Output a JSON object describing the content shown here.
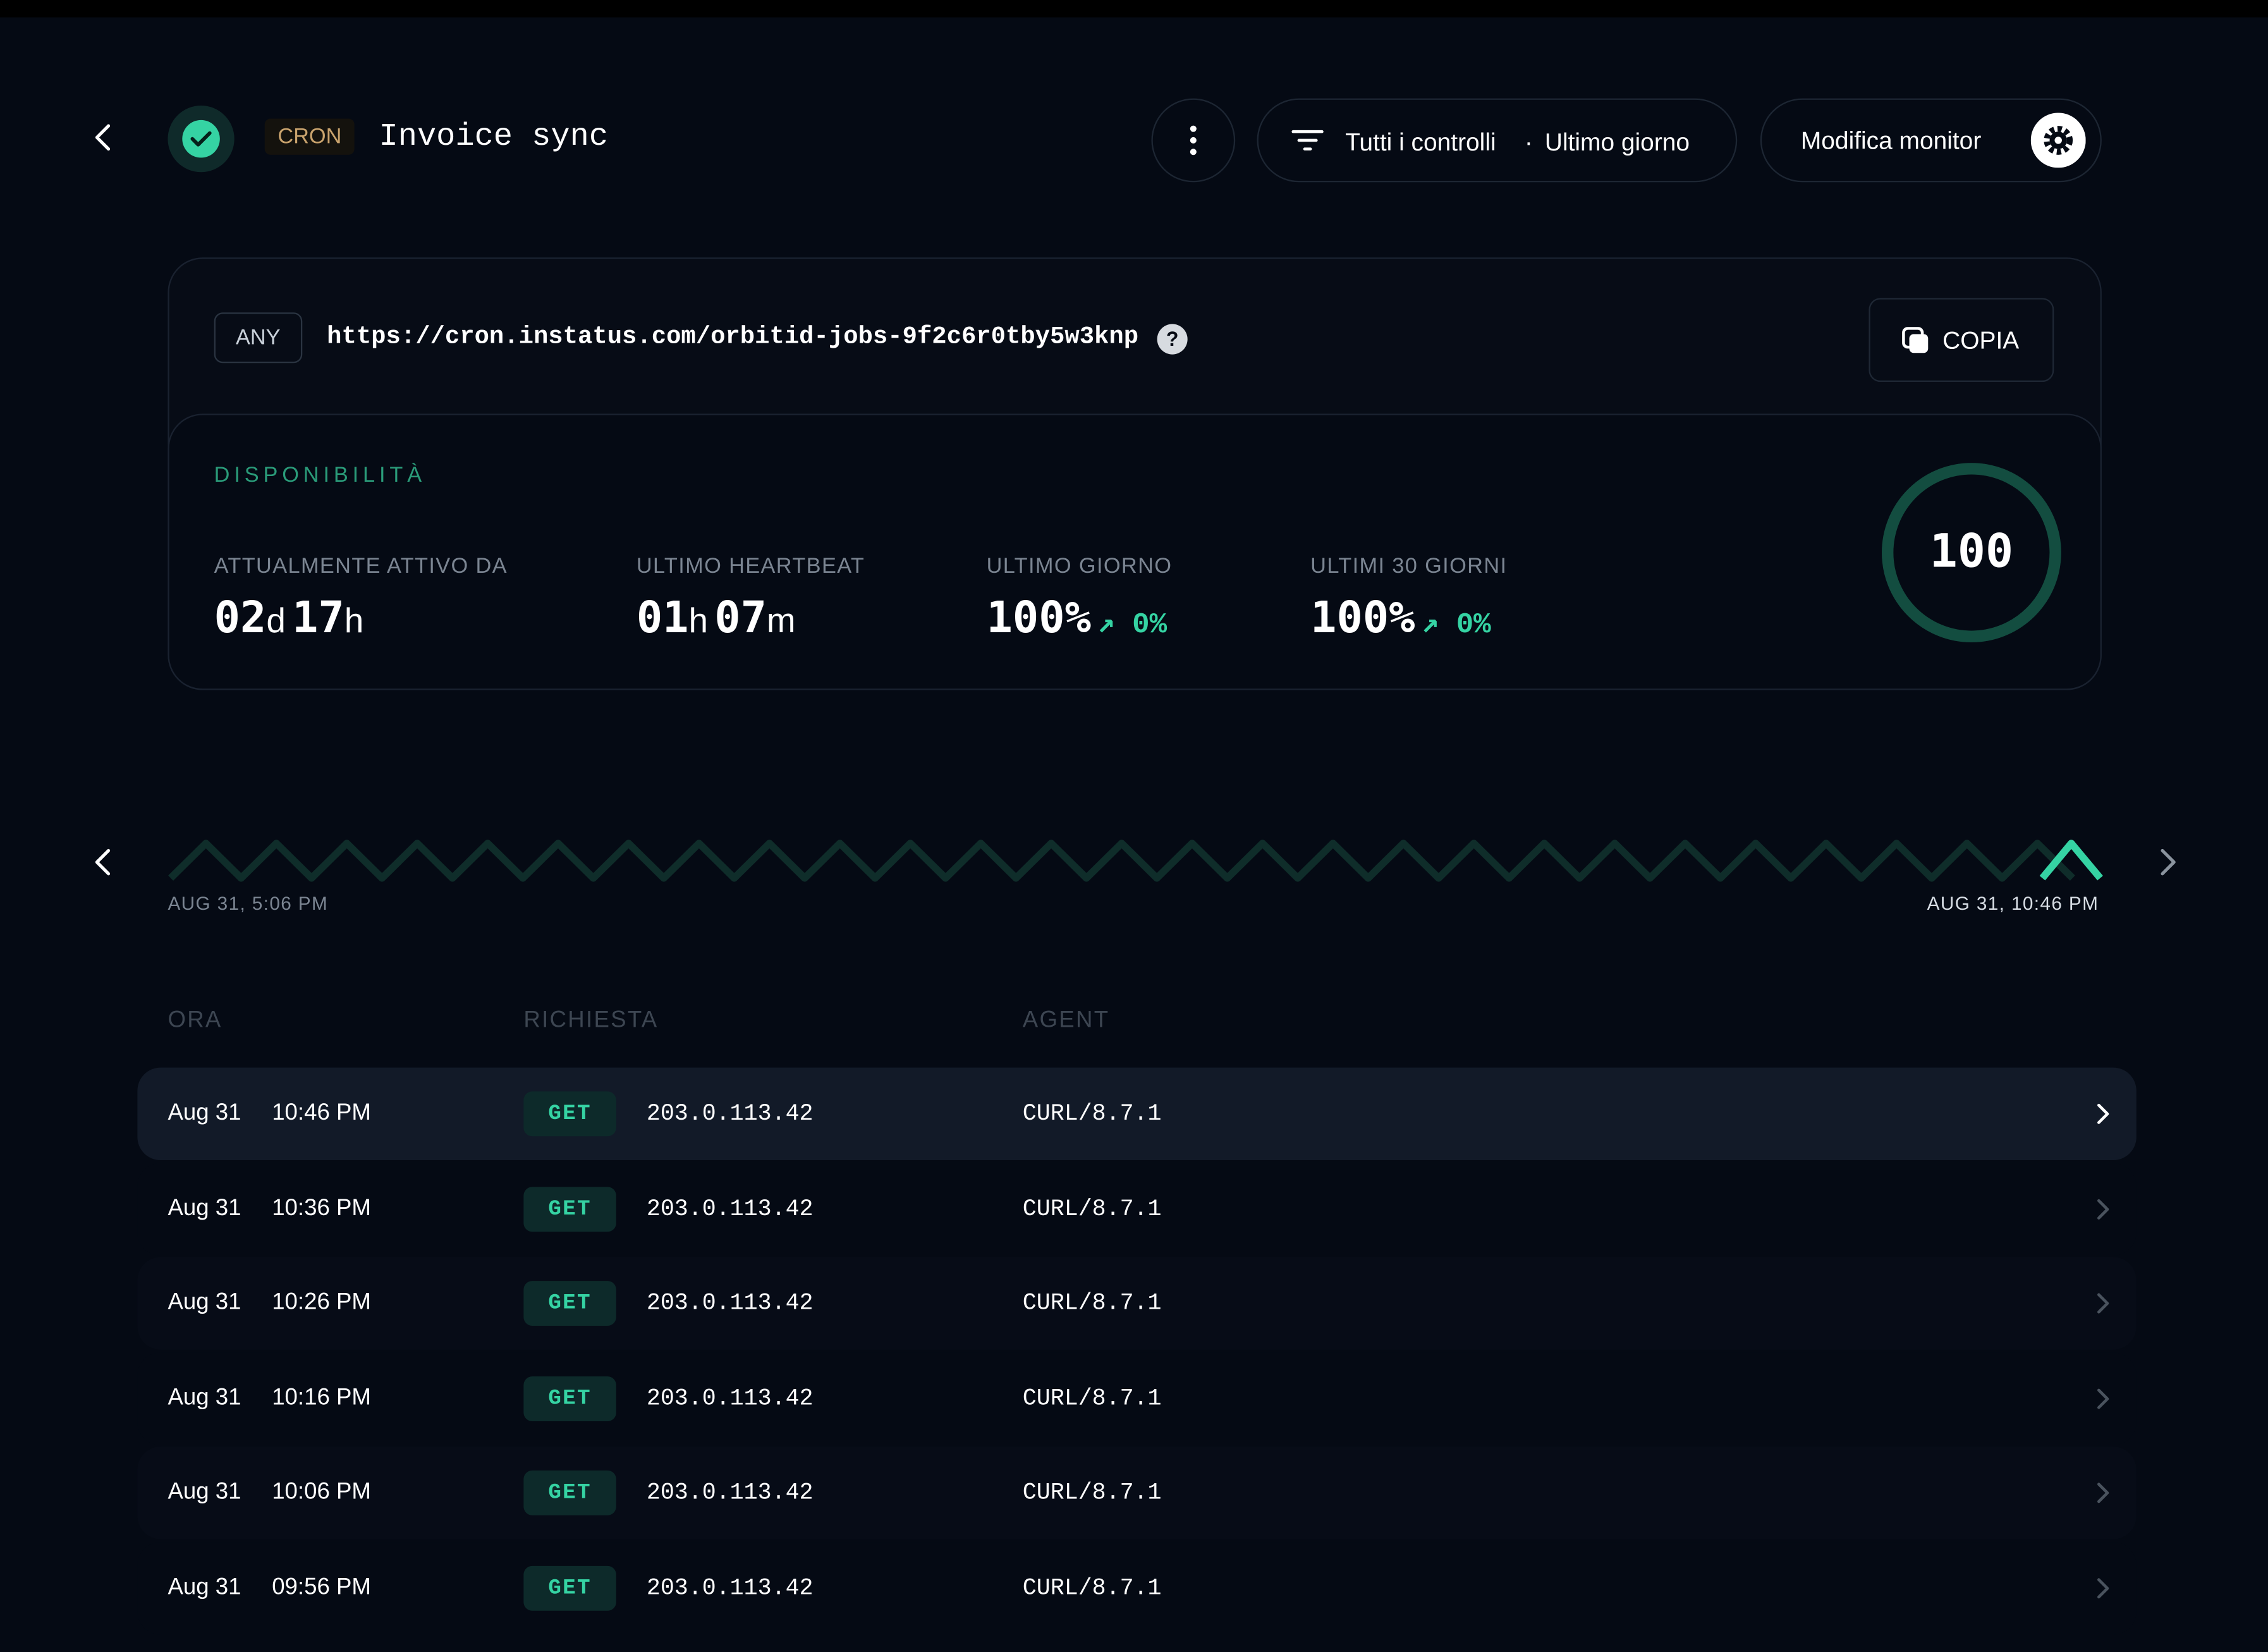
{
  "header": {
    "type_badge": "CRON",
    "title": "Invoice sync",
    "filter": "Tutti i controlli",
    "separator": "·",
    "period": "Ultimo giorno",
    "edit_button": "Modifica monitor"
  },
  "endpoint": {
    "method": "ANY",
    "url": "https://cron.instatus.com/orbitid-jobs-9f2c6r0tby5w3knp",
    "help": "?",
    "copy_button": "COPIA"
  },
  "availability": {
    "title": "DISPONIBILITÀ",
    "score": 100,
    "uptime": {
      "label": "ATTUALMENTE ATTIVO DA",
      "value1": "02",
      "unit1": "d",
      "value2": "17",
      "unit2": "h"
    },
    "heartbeat": {
      "label": "ULTIMO HEARTBEAT",
      "value1": "01",
      "unit1": "h",
      "value2": "07",
      "unit2": "m"
    },
    "day": {
      "label": "ULTIMO GIORNO",
      "value": "100%",
      "change": "0%"
    },
    "month": {
      "label": "ULTIMI 30 GIORNI",
      "value": "100%",
      "change": "0%"
    }
  },
  "timeline": {
    "start": "AUG 31, 5:06 PM",
    "end": "AUG 31, 10:46 PM"
  },
  "table": {
    "columns": [
      "ORA",
      "RICHIESTA",
      "AGENT"
    ],
    "rows": [
      {
        "date": "Aug 31",
        "time": "10:46 PM",
        "method": "GET",
        "ip": "203.0.113.42",
        "agent": "CURL/8.7.1"
      },
      {
        "date": "Aug 31",
        "time": "10:36 PM",
        "method": "GET",
        "ip": "203.0.113.42",
        "agent": "CURL/8.7.1"
      },
      {
        "date": "Aug 31",
        "time": "10:26 PM",
        "method": "GET",
        "ip": "203.0.113.42",
        "agent": "CURL/8.7.1"
      },
      {
        "date": "Aug 31",
        "time": "10:16 PM",
        "method": "GET",
        "ip": "203.0.113.42",
        "agent": "CURL/8.7.1"
      },
      {
        "date": "Aug 31",
        "time": "10:06 PM",
        "method": "GET",
        "ip": "203.0.113.42",
        "agent": "CURL/8.7.1"
      },
      {
        "date": "Aug 31",
        "time": "09:56 PM",
        "method": "GET",
        "ip": "203.0.113.42",
        "agent": "CURL/8.7.1"
      }
    ]
  }
}
